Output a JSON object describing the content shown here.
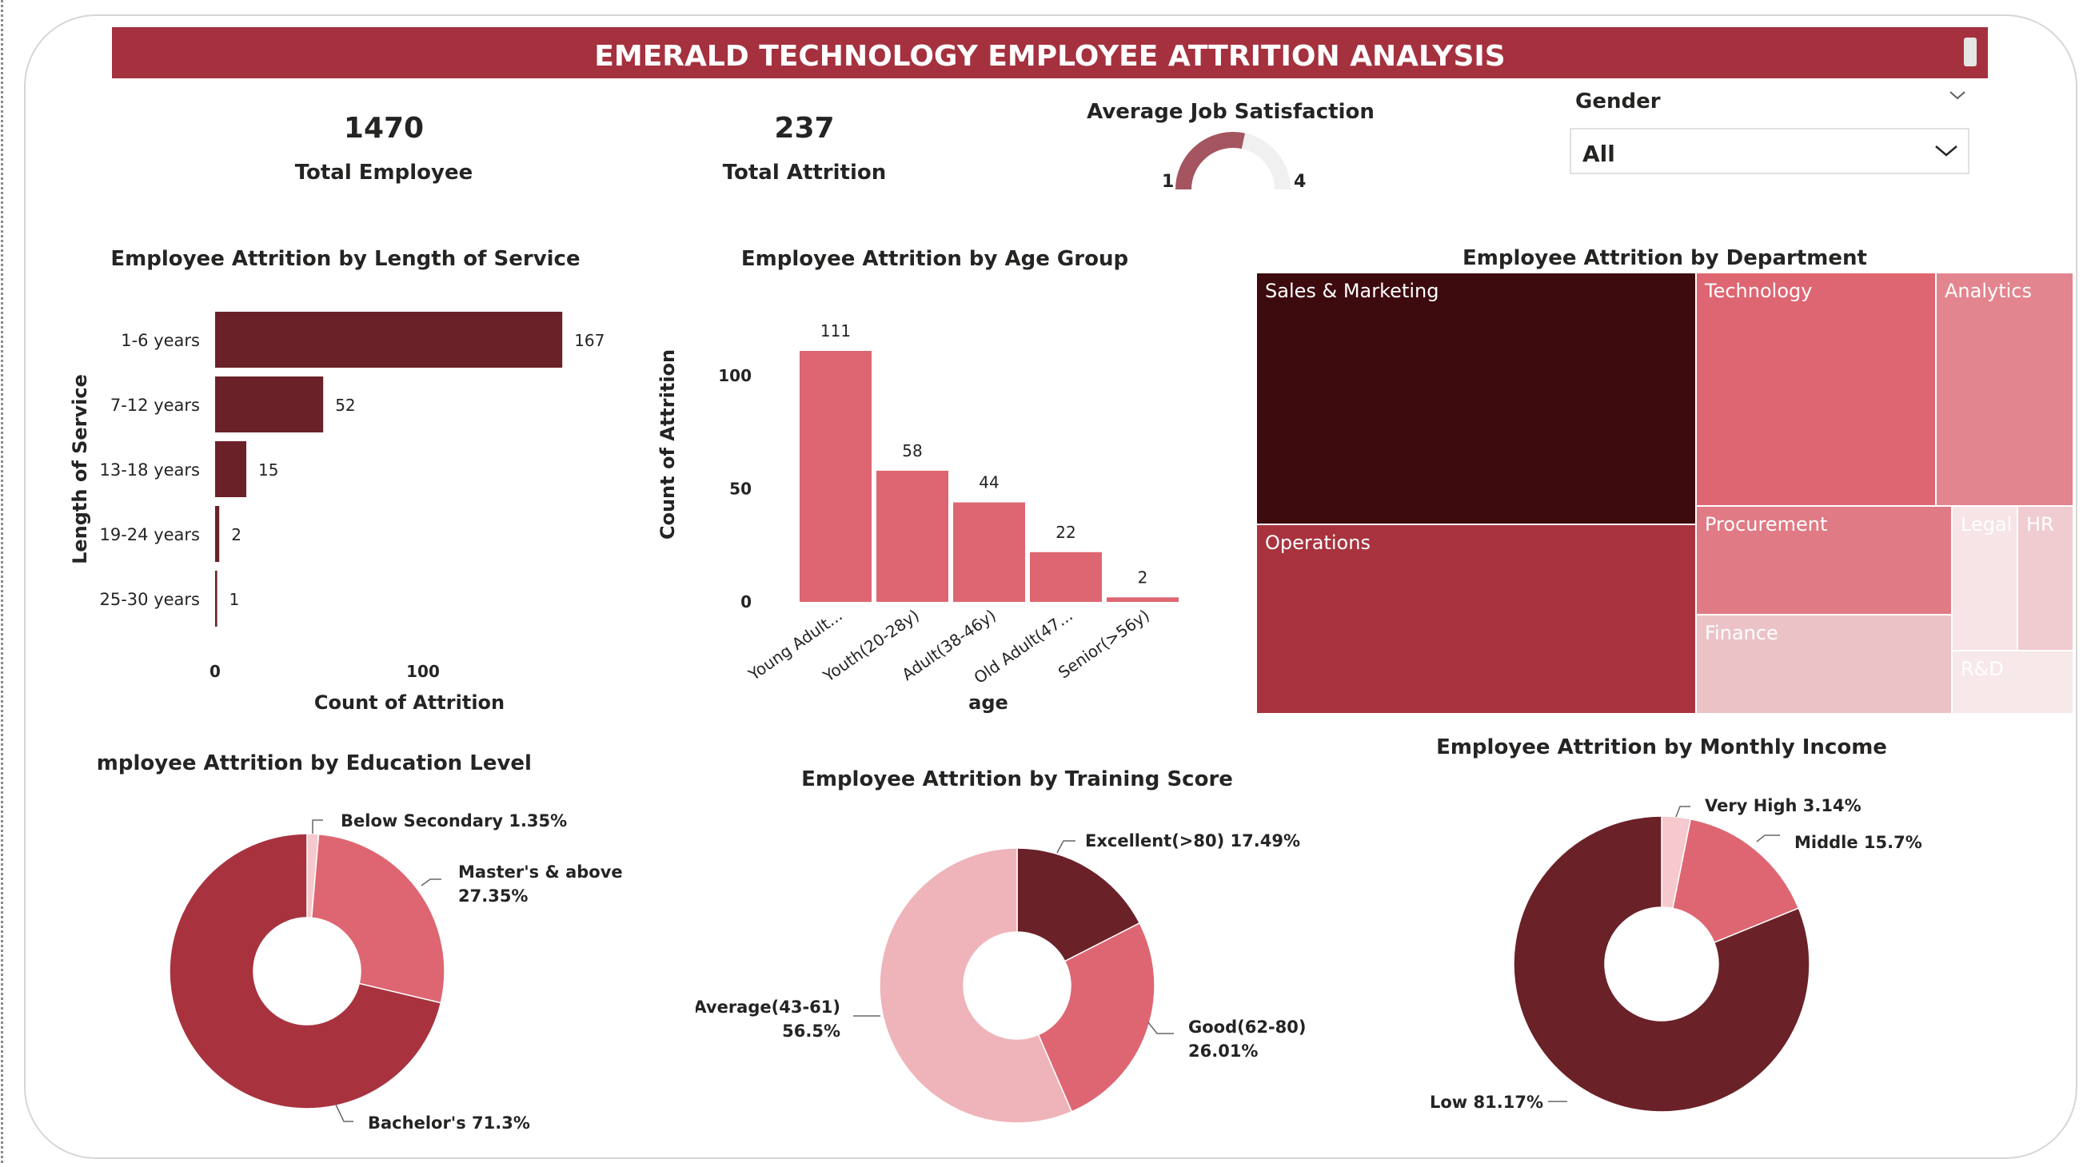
{
  "header": {
    "title": "EMERALD TECHNOLOGY EMPLOYEE ATTRITION ANALYSIS"
  },
  "kpis": {
    "total_employee": {
      "value": "1470",
      "label": "Total Employee"
    },
    "total_attrition": {
      "value": "237",
      "label": "Total Attrition"
    }
  },
  "gauge": {
    "title": "Average Job Satisfaction",
    "min_label": "1",
    "max_label": "4",
    "min": 1,
    "max": 4,
    "value": 2.7
  },
  "slicer": {
    "title": "Gender",
    "value": "All"
  },
  "colors": {
    "banner": "#a5313f",
    "dark": "#6b2128",
    "pink": "#de6672",
    "light_pink": "#eeb4b9",
    "mid": "#a8333f",
    "deep": "#3d0a0e"
  },
  "chart_data": [
    {
      "id": "service",
      "type": "bar",
      "orientation": "horizontal",
      "title": "Employee Attrition by Length of Service",
      "xlabel": "Count of Attrition",
      "ylabel": "Length of Service",
      "categories": [
        "1-6 years",
        "7-12 years",
        "13-18 years",
        "19-24 years",
        "25-30 years"
      ],
      "values": [
        167,
        52,
        15,
        2,
        1
      ],
      "xticks": [
        "0",
        "100"
      ],
      "xlim": [
        0,
        180
      ],
      "color": "#6b2128"
    },
    {
      "id": "age",
      "type": "bar",
      "title": "Employee Attrition by Age Group",
      "xlabel": "age",
      "ylabel": "Count of Attrition",
      "categories": [
        "Young Adult...",
        "Youth(20-28y)",
        "Adult(38-46y)",
        "Old Adult(47...",
        "Senior(>56y)"
      ],
      "values": [
        111,
        58,
        44,
        22,
        2
      ],
      "yticks": [
        "0",
        "50",
        "100"
      ],
      "ylim": [
        0,
        111
      ],
      "color": "#de6672"
    },
    {
      "id": "department",
      "type": "treemap",
      "title": "Employee Attrition by Department",
      "items": [
        {
          "label": "Sales & Marketing",
          "color": "#3d0a0e"
        },
        {
          "label": "Operations",
          "color": "#a8333f"
        },
        {
          "label": "Technology",
          "color": "#de6672"
        },
        {
          "label": "Analytics",
          "color": "#e3858e"
        },
        {
          "label": "Procurement",
          "color": "#e07a84"
        },
        {
          "label": "Finance",
          "color": "#ebc3c7"
        },
        {
          "label": "Legal",
          "color": "#f6e4e6"
        },
        {
          "label": "HR",
          "color": "#f0ccd0"
        },
        {
          "label": "R&D",
          "color": "#f7e8ea"
        }
      ]
    },
    {
      "id": "education",
      "type": "pie",
      "donut": true,
      "title": "Employee Attrition by Education Level",
      "slices": [
        {
          "label": "Below Secondary 1.35%",
          "value": 1.35,
          "color": "#f5c9cd"
        },
        {
          "label": "Master's & above",
          "label2": "27.35%",
          "value": 27.35,
          "color": "#de6672"
        },
        {
          "label": "Bachelor's 71.3%",
          "value": 71.3,
          "color": "#a8333f"
        }
      ]
    },
    {
      "id": "training",
      "type": "pie",
      "donut": true,
      "title": "Employee Attrition by Training Score",
      "slices": [
        {
          "label": "Excellent(>80) 17.49%",
          "value": 17.49,
          "color": "#6b2128"
        },
        {
          "label": "Good(62-80)",
          "label2": "26.01%",
          "value": 26.01,
          "color": "#de6672"
        },
        {
          "label": "Average(43-61)",
          "label2": "56.5%",
          "value": 56.5,
          "color": "#eeb4b9"
        }
      ]
    },
    {
      "id": "income",
      "type": "pie",
      "donut": true,
      "title": "Employee Attrition by Monthly Income",
      "slices": [
        {
          "label": "Very High 3.14%",
          "value": 3.14,
          "color": "#f5c9cd"
        },
        {
          "label": "Middle 15.7%",
          "value": 15.7,
          "color": "#de6672"
        },
        {
          "label": "Low 81.17%",
          "value": 81.17,
          "color": "#6b2128"
        }
      ]
    }
  ]
}
